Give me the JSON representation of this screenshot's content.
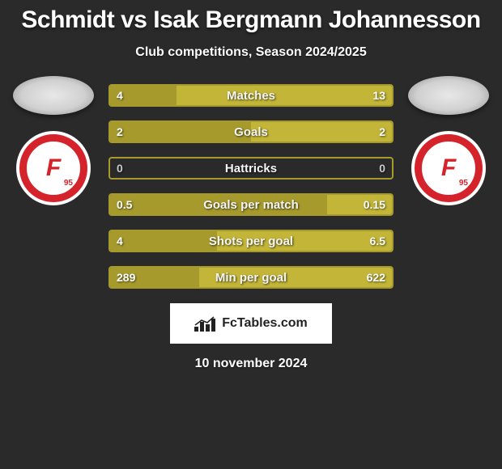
{
  "title": "Schmidt vs Isak Bergmann Johannesson",
  "subtitle": "Club competitions, Season 2024/2025",
  "footer_brand": "FcTables.com",
  "date": "10 november 2024",
  "colors": {
    "bg": "#2a2a2a",
    "bar_primary": "#a69a2d",
    "bar_primary_light": "#c2b537",
    "border": "#a69a2d",
    "text_on_bar": "#ffffff",
    "val_on_fill": "#ffffff",
    "val_on_empty": "#c9c9c9"
  },
  "club_badge": {
    "outer": "#ffffff",
    "ring": "#d4232b",
    "letter": "F",
    "number": "95",
    "letter_color": "#d4232b"
  },
  "bars": [
    {
      "label": "Matches",
      "left_value": "4",
      "right_value": "13",
      "left_pct": 23.5,
      "right_pct": 76.5,
      "fill_both": true
    },
    {
      "label": "Goals",
      "left_value": "2",
      "right_value": "2",
      "left_pct": 50,
      "right_pct": 50,
      "fill_both": true
    },
    {
      "label": "Hattricks",
      "left_value": "0",
      "right_value": "0",
      "left_pct": 0,
      "right_pct": 0,
      "fill_both": false
    },
    {
      "label": "Goals per match",
      "left_value": "0.5",
      "right_value": "0.15",
      "left_pct": 77,
      "right_pct": 23,
      "fill_both": true
    },
    {
      "label": "Shots per goal",
      "left_value": "4",
      "right_value": "6.5",
      "left_pct": 38,
      "right_pct": 62,
      "fill_both": true
    },
    {
      "label": "Min per goal",
      "left_value": "289",
      "right_value": "622",
      "left_pct": 31.7,
      "right_pct": 68.3,
      "fill_both": true
    }
  ],
  "typography": {
    "title_fontsize": 30,
    "subtitle_fontsize": 16,
    "bar_label_fontsize": 15,
    "bar_value_fontsize": 14,
    "date_fontsize": 16
  }
}
